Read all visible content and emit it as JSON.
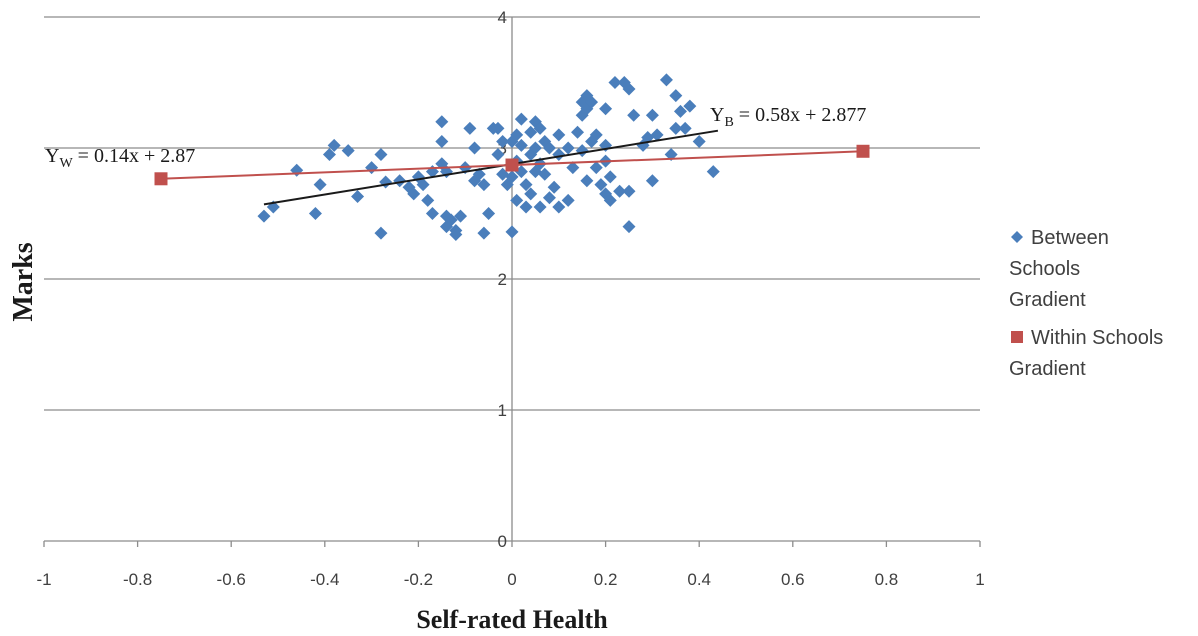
{
  "chart_data": {
    "type": "scatter",
    "title": "",
    "xlabel": "Self-rated Health",
    "ylabel": "Marks",
    "xlim": [
      -1,
      1
    ],
    "ylim": [
      0,
      4
    ],
    "x_ticks": [
      "-1",
      "-0.8",
      "-0.6",
      "-0.4",
      "-0.2",
      "0",
      "0.2",
      "0.4",
      "0.6",
      "0.8",
      "1"
    ],
    "y_ticks": [
      "0",
      "1",
      "2",
      "3",
      "4"
    ],
    "grid": "horizontal major gridlines",
    "legend_position": "right",
    "colors": {
      "between": "#4a7ebb",
      "within": "#c0504d",
      "trend": "#1a1a1a"
    },
    "series": [
      {
        "name": "Between Schools Gradient",
        "marker": "diamond",
        "points": [
          [
            -0.53,
            2.48
          ],
          [
            -0.51,
            2.55
          ],
          [
            -0.46,
            2.83
          ],
          [
            -0.42,
            2.5
          ],
          [
            -0.41,
            2.72
          ],
          [
            -0.39,
            2.95
          ],
          [
            -0.38,
            3.02
          ],
          [
            -0.35,
            2.98
          ],
          [
            -0.33,
            2.63
          ],
          [
            -0.3,
            2.85
          ],
          [
            -0.28,
            2.95
          ],
          [
            -0.28,
            2.35
          ],
          [
            -0.27,
            2.74
          ],
          [
            -0.24,
            2.75
          ],
          [
            -0.22,
            2.7
          ],
          [
            -0.21,
            2.65
          ],
          [
            -0.2,
            2.78
          ],
          [
            -0.19,
            2.72
          ],
          [
            -0.18,
            2.6
          ],
          [
            -0.17,
            2.5
          ],
          [
            -0.17,
            2.82
          ],
          [
            -0.15,
            3.2
          ],
          [
            -0.15,
            3.05
          ],
          [
            -0.15,
            2.88
          ],
          [
            -0.14,
            2.82
          ],
          [
            -0.14,
            2.48
          ],
          [
            -0.14,
            2.4
          ],
          [
            -0.13,
            2.45
          ],
          [
            -0.12,
            2.34
          ],
          [
            -0.12,
            2.37
          ],
          [
            -0.11,
            2.48
          ],
          [
            -0.1,
            2.85
          ],
          [
            -0.09,
            3.15
          ],
          [
            -0.08,
            3.0
          ],
          [
            -0.08,
            2.75
          ],
          [
            -0.07,
            2.8
          ],
          [
            -0.06,
            2.72
          ],
          [
            -0.06,
            2.35
          ],
          [
            -0.05,
            2.5
          ],
          [
            -0.04,
            3.15
          ],
          [
            -0.03,
            3.15
          ],
          [
            -0.03,
            2.95
          ],
          [
            -0.02,
            3.05
          ],
          [
            -0.02,
            2.8
          ],
          [
            -0.01,
            2.72
          ],
          [
            0.0,
            3.05
          ],
          [
            0.0,
            2.78
          ],
          [
            0.0,
            2.36
          ],
          [
            0.01,
            3.1
          ],
          [
            0.01,
            2.9
          ],
          [
            0.01,
            2.6
          ],
          [
            0.02,
            3.22
          ],
          [
            0.02,
            3.02
          ],
          [
            0.02,
            2.82
          ],
          [
            0.03,
            2.72
          ],
          [
            0.03,
            2.55
          ],
          [
            0.04,
            3.12
          ],
          [
            0.04,
            2.95
          ],
          [
            0.04,
            2.65
          ],
          [
            0.05,
            3.2
          ],
          [
            0.05,
            3.0
          ],
          [
            0.05,
            2.82
          ],
          [
            0.06,
            3.15
          ],
          [
            0.06,
            2.88
          ],
          [
            0.06,
            2.55
          ],
          [
            0.07,
            3.05
          ],
          [
            0.07,
            2.8
          ],
          [
            0.08,
            3.0
          ],
          [
            0.08,
            2.62
          ],
          [
            0.09,
            2.7
          ],
          [
            0.1,
            3.1
          ],
          [
            0.1,
            2.95
          ],
          [
            0.1,
            2.55
          ],
          [
            0.12,
            3.0
          ],
          [
            0.12,
            2.6
          ],
          [
            0.13,
            2.85
          ],
          [
            0.14,
            3.12
          ],
          [
            0.15,
            3.35
          ],
          [
            0.15,
            3.25
          ],
          [
            0.15,
            2.98
          ],
          [
            0.16,
            3.4
          ],
          [
            0.16,
            3.3
          ],
          [
            0.16,
            2.75
          ],
          [
            0.17,
            3.35
          ],
          [
            0.17,
            3.05
          ],
          [
            0.18,
            3.1
          ],
          [
            0.18,
            2.85
          ],
          [
            0.19,
            2.72
          ],
          [
            0.2,
            3.3
          ],
          [
            0.2,
            3.02
          ],
          [
            0.2,
            2.9
          ],
          [
            0.2,
            2.65
          ],
          [
            0.21,
            2.6
          ],
          [
            0.21,
            2.78
          ],
          [
            0.22,
            3.5
          ],
          [
            0.23,
            2.67
          ],
          [
            0.24,
            3.5
          ],
          [
            0.25,
            3.45
          ],
          [
            0.25,
            2.67
          ],
          [
            0.25,
            2.4
          ],
          [
            0.26,
            3.25
          ],
          [
            0.28,
            3.02
          ],
          [
            0.29,
            3.08
          ],
          [
            0.3,
            3.25
          ],
          [
            0.3,
            2.75
          ],
          [
            0.31,
            3.1
          ],
          [
            0.33,
            3.52
          ],
          [
            0.34,
            2.95
          ],
          [
            0.35,
            3.4
          ],
          [
            0.35,
            3.15
          ],
          [
            0.36,
            3.28
          ],
          [
            0.37,
            3.15
          ],
          [
            0.38,
            3.32
          ],
          [
            0.4,
            3.05
          ],
          [
            0.43,
            2.82
          ]
        ]
      },
      {
        "name": "Within Schools Gradient",
        "marker": "square",
        "points": [
          [
            -0.75,
            2.765
          ],
          [
            0.0,
            2.87
          ],
          [
            0.75,
            2.975
          ]
        ]
      }
    ],
    "trendlines": [
      {
        "series": "Between Schools Gradient",
        "slope": 0.58,
        "intercept": 2.877,
        "x_range": [
          -0.53,
          0.44
        ]
      },
      {
        "series": "Within Schools Gradient",
        "slope": 0.14,
        "intercept": 2.87,
        "x_range": [
          -0.75,
          0.75
        ]
      }
    ],
    "annotations": {
      "within_equation": {
        "lhs": "Y",
        "sub": "W",
        "rhs": " = 0.14x + 2.87"
      },
      "between_equation": {
        "lhs": "Y",
        "sub": "B",
        "rhs": " = 0.58x + 2.877"
      }
    }
  }
}
